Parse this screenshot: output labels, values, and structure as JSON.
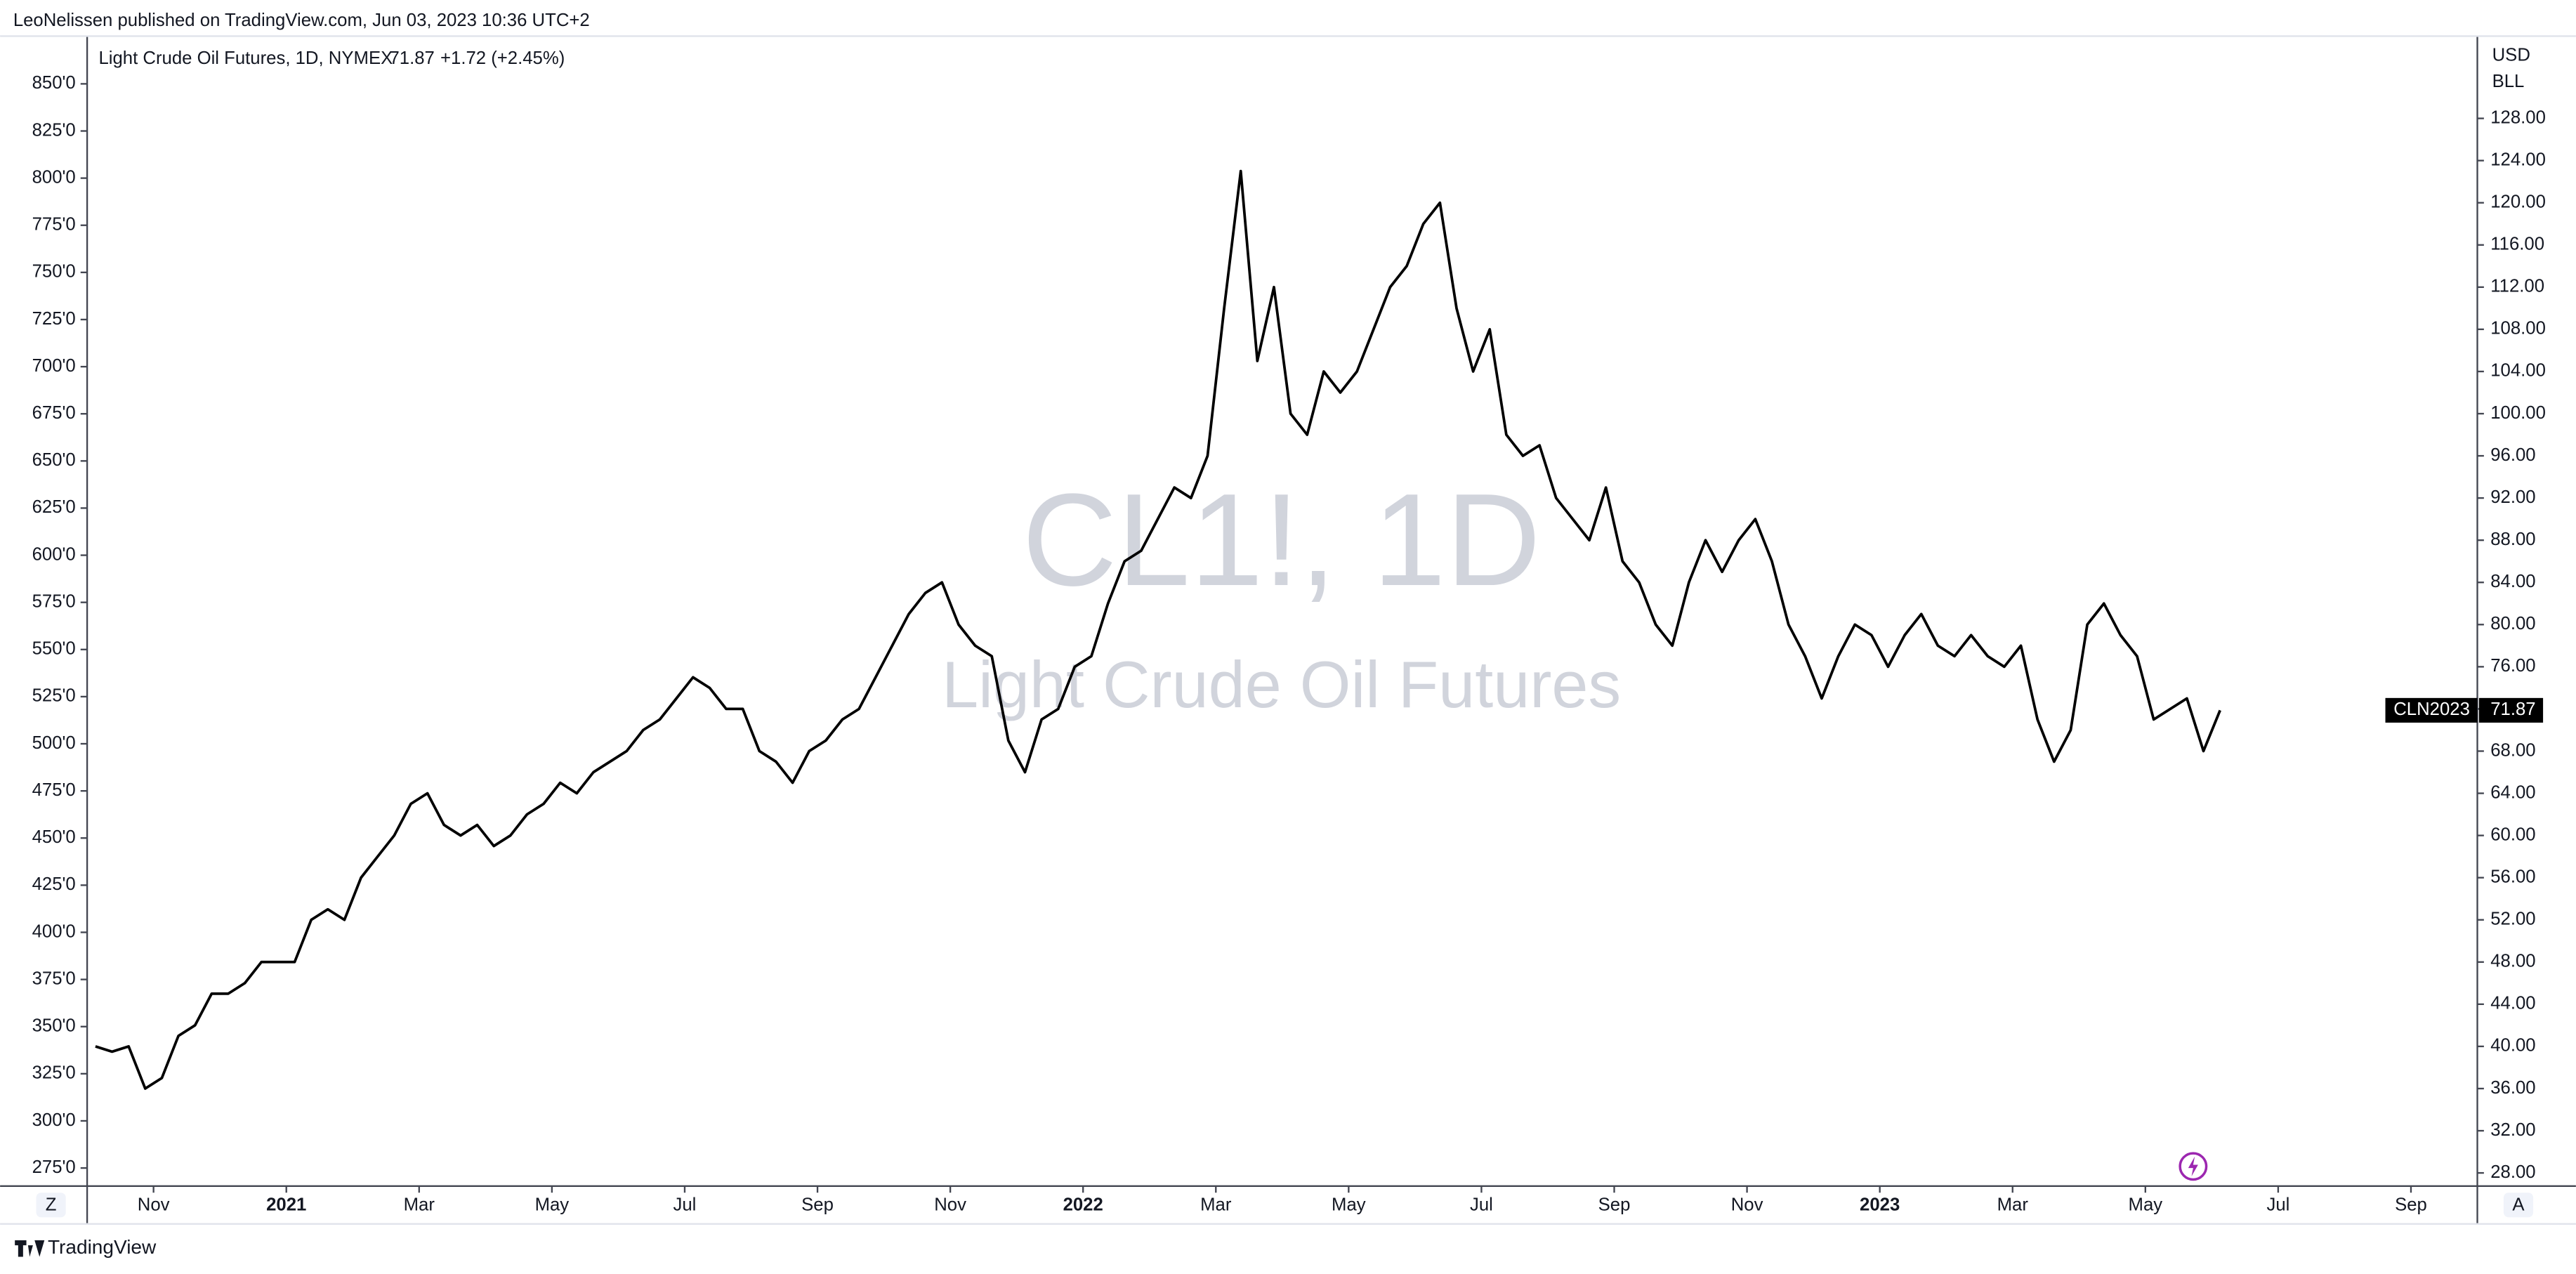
{
  "header": {
    "published": "LeoNelissen published on TradingView.com, Jun 03, 2023 10:36 UTC+2",
    "brand": "TradingView",
    "left_button": "Z",
    "right_button": "A"
  },
  "chart_data": {
    "type": "line",
    "legend_title": "Light Crude Oil Futures, 1D, NYMEX",
    "change": "+1.72 (+2.45%)",
    "watermark_symbol": "CL1!, 1D",
    "watermark_name": "Light Crude Oil Futures",
    "y_unit": "USD",
    "y_unit2": "BLL",
    "last_label": "CLN2023",
    "x": [
      "2020-10",
      "2020-10",
      "2020-10",
      "2020-10",
      "2020-11",
      "2020-11",
      "2020-11",
      "2020-11",
      "2020-12",
      "2020-12",
      "2020-12",
      "2020-12",
      "2021-01",
      "2021-01",
      "2021-01",
      "2021-01",
      "2021-02",
      "2021-02",
      "2021-02",
      "2021-02",
      "2021-03",
      "2021-03",
      "2021-03",
      "2021-03",
      "2021-04",
      "2021-04",
      "2021-04",
      "2021-04",
      "2021-05",
      "2021-05",
      "2021-05",
      "2021-05",
      "2021-06",
      "2021-06",
      "2021-06",
      "2021-06",
      "2021-07",
      "2021-07",
      "2021-07",
      "2021-07",
      "2021-08",
      "2021-08",
      "2021-08",
      "2021-08",
      "2021-09",
      "2021-09",
      "2021-09",
      "2021-09",
      "2021-10",
      "2021-10",
      "2021-10",
      "2021-10",
      "2021-11",
      "2021-11",
      "2021-11",
      "2021-11",
      "2021-12",
      "2021-12",
      "2021-12",
      "2021-12",
      "2022-01",
      "2022-01",
      "2022-01",
      "2022-01",
      "2022-02",
      "2022-02",
      "2022-02",
      "2022-02",
      "2022-03",
      "2022-03",
      "2022-03",
      "2022-03",
      "2022-04",
      "2022-04",
      "2022-04",
      "2022-04",
      "2022-05",
      "2022-05",
      "2022-05",
      "2022-05",
      "2022-06",
      "2022-06",
      "2022-06",
      "2022-06",
      "2022-07",
      "2022-07",
      "2022-07",
      "2022-07",
      "2022-08",
      "2022-08",
      "2022-08",
      "2022-08",
      "2022-09",
      "2022-09",
      "2022-09",
      "2022-09",
      "2022-10",
      "2022-10",
      "2022-10",
      "2022-10",
      "2022-11",
      "2022-11",
      "2022-11",
      "2022-11",
      "2022-12",
      "2022-12",
      "2022-12",
      "2022-12",
      "2023-01",
      "2023-01",
      "2023-01",
      "2023-01",
      "2023-02",
      "2023-02",
      "2023-02",
      "2023-02",
      "2023-03",
      "2023-03",
      "2023-03",
      "2023-03",
      "2023-04",
      "2023-04",
      "2023-04",
      "2023-04",
      "2023-05",
      "2023-05",
      "2023-05",
      "2023-05",
      "2023-06"
    ],
    "series": [
      {
        "name": "Light Crude Oil Futures",
        "color": "#000000",
        "values": [
          40,
          39.5,
          40,
          36,
          37,
          41,
          42,
          45,
          45,
          46,
          48,
          48,
          48,
          52,
          53,
          52,
          56,
          58,
          60,
          63,
          64,
          61,
          60,
          61,
          59,
          60,
          62,
          63,
          65,
          64,
          66,
          67,
          68,
          70,
          71,
          73,
          75,
          74,
          72,
          72,
          68,
          67,
          65,
          68,
          69,
          71,
          72,
          75,
          78,
          81,
          83,
          84,
          80,
          78,
          77,
          69,
          66,
          71,
          72,
          76,
          77,
          82,
          86,
          87,
          90,
          93,
          92,
          96,
          110,
          123,
          105,
          112,
          100,
          98,
          104,
          102,
          104,
          108,
          112,
          114,
          118,
          120,
          110,
          104,
          108,
          98,
          96,
          97,
          92,
          90,
          88,
          93,
          86,
          84,
          80,
          78,
          84,
          88,
          85,
          88,
          90,
          86,
          80,
          77,
          73,
          77,
          80,
          79,
          76,
          79,
          81,
          78,
          77,
          79,
          77,
          76,
          78,
          71,
          67,
          70,
          80,
          82,
          79,
          77,
          71,
          72,
          73,
          68,
          71.87
        ]
      }
    ],
    "xlim": [
      "2020-10",
      "2023-10"
    ],
    "xticks": [
      {
        "value": "2020-11",
        "label": "Nov"
      },
      {
        "value": "2021-01",
        "label": "2021"
      },
      {
        "value": "2021-03",
        "label": "Mar"
      },
      {
        "value": "2021-05",
        "label": "May"
      },
      {
        "value": "2021-07",
        "label": "Jul"
      },
      {
        "value": "2021-09",
        "label": "Sep"
      },
      {
        "value": "2021-11",
        "label": "Nov"
      },
      {
        "value": "2022-01",
        "label": "2022"
      },
      {
        "value": "2022-03",
        "label": "Mar"
      },
      {
        "value": "2022-05",
        "label": "May"
      },
      {
        "value": "2022-07",
        "label": "Jul"
      },
      {
        "value": "2022-09",
        "label": "Sep"
      },
      {
        "value": "2022-11",
        "label": "Nov"
      },
      {
        "value": "2023-01",
        "label": "2023"
      },
      {
        "value": "2023-03",
        "label": "Mar"
      },
      {
        "value": "2023-05",
        "label": "May"
      },
      {
        "value": "2023-07",
        "label": "Jul"
      },
      {
        "value": "2023-09",
        "label": "Sep"
      }
    ],
    "ylim": [
      26.75,
      135.8
    ],
    "yticks": [
      {
        "value": 28,
        "label": "28.00"
      },
      {
        "value": 32,
        "label": "32.00"
      },
      {
        "value": 36,
        "label": "36.00"
      },
      {
        "value": 40,
        "label": "40.00"
      },
      {
        "value": 44,
        "label": "44.00"
      },
      {
        "value": 48,
        "label": "48.00"
      },
      {
        "value": 52,
        "label": "52.00"
      },
      {
        "value": 56,
        "label": "56.00"
      },
      {
        "value": 60,
        "label": "60.00"
      },
      {
        "value": 64,
        "label": "64.00"
      },
      {
        "value": 68,
        "label": "68.00"
      },
      {
        "value": 72,
        "label": "72.00"
      },
      {
        "value": 76,
        "label": "76.00"
      },
      {
        "value": 80,
        "label": "80.00"
      },
      {
        "value": 84,
        "label": "84.00"
      },
      {
        "value": 88,
        "label": "88.00"
      },
      {
        "value": 92,
        "label": "92.00"
      },
      {
        "value": 96,
        "label": "96.00"
      },
      {
        "value": 100,
        "label": "100.00"
      },
      {
        "value": 104,
        "label": "104.00"
      },
      {
        "value": 108,
        "label": "108.00"
      },
      {
        "value": 112,
        "label": "112.00"
      },
      {
        "value": 116,
        "label": "116.00"
      },
      {
        "value": 120,
        "label": "120.00"
      },
      {
        "value": 124,
        "label": "124.00"
      },
      {
        "value": 128,
        "label": "128.00"
      }
    ],
    "y2lim": [
      265.4,
      875.3
    ],
    "y2ticks": [
      {
        "value": 275,
        "label": "275'0"
      },
      {
        "value": 300,
        "label": "300'0"
      },
      {
        "value": 325,
        "label": "325'0"
      },
      {
        "value": 350,
        "label": "350'0"
      },
      {
        "value": 375,
        "label": "375'0"
      },
      {
        "value": 400,
        "label": "400'0"
      },
      {
        "value": 425,
        "label": "425'0"
      },
      {
        "value": 450,
        "label": "450'0"
      },
      {
        "value": 475,
        "label": "475'0"
      },
      {
        "value": 500,
        "label": "500'0"
      },
      {
        "value": 525,
        "label": "525'0"
      },
      {
        "value": 550,
        "label": "550'0"
      },
      {
        "value": 575,
        "label": "575'0"
      },
      {
        "value": 600,
        "label": "600'0"
      },
      {
        "value": 625,
        "label": "625'0"
      },
      {
        "value": 650,
        "label": "650'0"
      },
      {
        "value": 675,
        "label": "675'0"
      },
      {
        "value": 700,
        "label": "700'0"
      },
      {
        "value": 725,
        "label": "725'0"
      },
      {
        "value": 750,
        "label": "750'0"
      },
      {
        "value": 775,
        "label": "775'0"
      },
      {
        "value": 800,
        "label": "800'0"
      },
      {
        "value": 825,
        "label": "825'0"
      },
      {
        "value": 850,
        "label": "850'0"
      }
    ],
    "grid": false
  }
}
